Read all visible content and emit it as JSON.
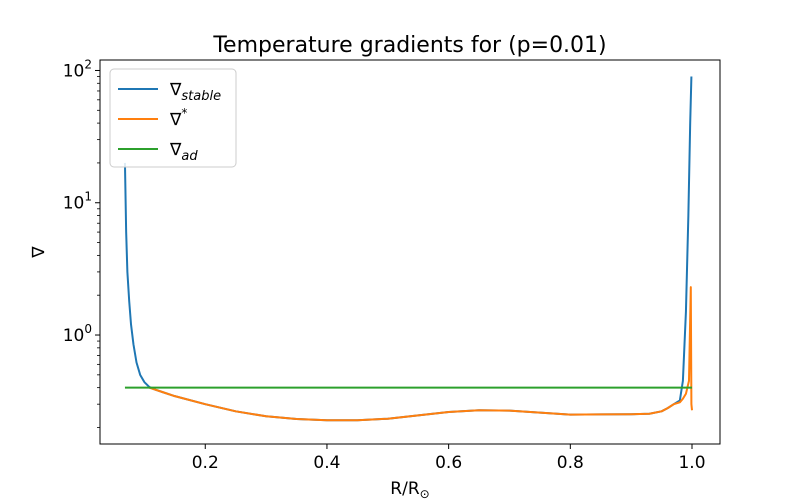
{
  "chart_data": {
    "type": "line",
    "title": "Temperature gradients for (p=0.01)",
    "xlabel": "R/R",
    "xlabel_sub": "⊙",
    "ylabel": "∇",
    "yscale": "log",
    "xlim": [
      0.027,
      1.046
    ],
    "ylim": [
      0.15,
      120
    ],
    "xticks": [
      0.2,
      0.4,
      0.6,
      0.8,
      1.0
    ],
    "xtick_labels": [
      "0.2",
      "0.4",
      "0.6",
      "0.8",
      "1.0"
    ],
    "yticks": [
      1,
      10,
      100
    ],
    "ytick_labels": [
      {
        "base": "10",
        "exp": "0"
      },
      {
        "base": "10",
        "exp": "1"
      },
      {
        "base": "10",
        "exp": "2"
      }
    ],
    "grid": false,
    "legend": {
      "placement": "top-left",
      "entries": [
        {
          "symbol": "∇",
          "sub": "stable",
          "sup": "",
          "color": "#1f77b4"
        },
        {
          "symbol": "∇",
          "sub": "",
          "sup": "*",
          "color": "#ff7f0e"
        },
        {
          "symbol": "∇",
          "sub": "ad",
          "sup": "",
          "color": "#2ca02c"
        }
      ]
    },
    "series": [
      {
        "key": "stable",
        "color": "#1f77b4",
        "points": [
          [
            0.068,
            20
          ],
          [
            0.07,
            6
          ],
          [
            0.072,
            3.0
          ],
          [
            0.075,
            1.8
          ],
          [
            0.078,
            1.2
          ],
          [
            0.082,
            0.85
          ],
          [
            0.087,
            0.62
          ],
          [
            0.093,
            0.5
          ],
          [
            0.1,
            0.44
          ],
          [
            0.108,
            0.405
          ],
          [
            0.115,
            0.39
          ],
          [
            0.13,
            0.37
          ],
          [
            0.15,
            0.345
          ],
          [
            0.2,
            0.3
          ],
          [
            0.25,
            0.265
          ],
          [
            0.3,
            0.243
          ],
          [
            0.35,
            0.232
          ],
          [
            0.4,
            0.227
          ],
          [
            0.45,
            0.227
          ],
          [
            0.5,
            0.233
          ],
          [
            0.55,
            0.247
          ],
          [
            0.6,
            0.262
          ],
          [
            0.65,
            0.27
          ],
          [
            0.7,
            0.268
          ],
          [
            0.75,
            0.259
          ],
          [
            0.8,
            0.25
          ],
          [
            0.85,
            0.251
          ],
          [
            0.9,
            0.252
          ],
          [
            0.93,
            0.254
          ],
          [
            0.95,
            0.265
          ],
          [
            0.96,
            0.28
          ],
          [
            0.97,
            0.3
          ],
          [
            0.98,
            0.32
          ],
          [
            0.985,
            0.45
          ],
          [
            0.99,
            1.5
          ],
          [
            0.994,
            8
          ],
          [
            0.997,
            40
          ],
          [
            0.999,
            90
          ]
        ]
      },
      {
        "key": "star",
        "color": "#ff7f0e",
        "points": [
          [
            0.108,
            0.4
          ],
          [
            0.115,
            0.39
          ],
          [
            0.13,
            0.37
          ],
          [
            0.15,
            0.345
          ],
          [
            0.2,
            0.3
          ],
          [
            0.25,
            0.265
          ],
          [
            0.3,
            0.243
          ],
          [
            0.35,
            0.232
          ],
          [
            0.4,
            0.227
          ],
          [
            0.45,
            0.227
          ],
          [
            0.5,
            0.233
          ],
          [
            0.55,
            0.247
          ],
          [
            0.6,
            0.262
          ],
          [
            0.65,
            0.27
          ],
          [
            0.7,
            0.268
          ],
          [
            0.75,
            0.259
          ],
          [
            0.8,
            0.25
          ],
          [
            0.85,
            0.251
          ],
          [
            0.9,
            0.252
          ],
          [
            0.93,
            0.254
          ],
          [
            0.95,
            0.265
          ],
          [
            0.96,
            0.28
          ],
          [
            0.97,
            0.3
          ],
          [
            0.98,
            0.31
          ],
          [
            0.985,
            0.33
          ],
          [
            0.99,
            0.36
          ],
          [
            0.995,
            0.45
          ],
          [
            0.998,
            2.3
          ],
          [
            0.999,
            0.3
          ],
          [
            1.0,
            0.27
          ]
        ]
      },
      {
        "key": "ad",
        "color": "#2ca02c",
        "points": [
          [
            0.068,
            0.4
          ],
          [
            1.0,
            0.4
          ]
        ]
      }
    ]
  }
}
